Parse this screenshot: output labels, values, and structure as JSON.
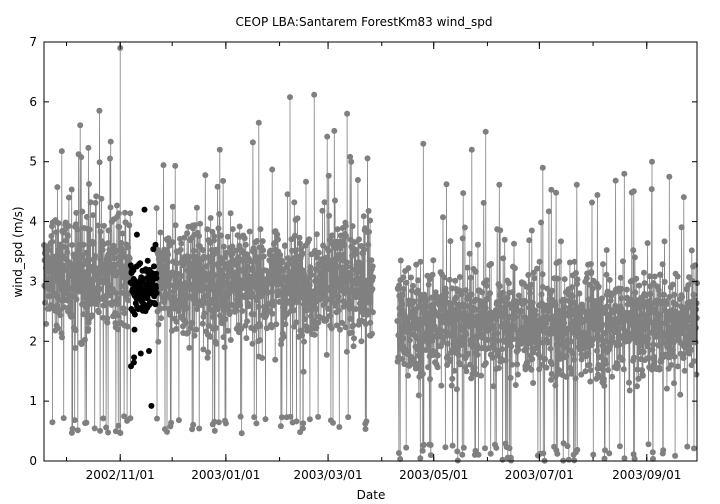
{
  "chart_data": {
    "type": "scatter",
    "title": "CEOP LBA:Santarem ForestKm83  wind_spd",
    "xlabel": "Date",
    "ylabel": "wind_spd (m/s)",
    "x_axis_type": "date",
    "xlim": [
      "2002-09-18",
      "2003-09-30"
    ],
    "ylim": [
      0,
      7
    ],
    "y_ticks": [
      0,
      1,
      2,
      3,
      4,
      5,
      6,
      7
    ],
    "x_ticks": [
      "2002-11-01",
      "2003-01-01",
      "2003-03-01",
      "2003-05-01",
      "2003-07-01",
      "2003-09-01"
    ],
    "x_tick_labels": [
      "2002/11/01",
      "2003/01/01",
      "2003/03/01",
      "2003/05/01",
      "2003/07/01",
      "2003/09/01"
    ],
    "grid": false,
    "legend": "none",
    "series": [
      {
        "color": "#808080",
        "mode": "lines+markers",
        "segments": [
          {
            "start": "2002-09-18",
            "end": "2002-11-07",
            "mean": 3.1,
            "spread": 1.3,
            "min_floor": 0.45
          },
          {
            "start": "2002-11-22",
            "end": "2003-03-27",
            "mean": 3.0,
            "spread": 1.3,
            "min_floor": 0.45
          },
          {
            "start": "2003-04-10",
            "end": "2003-09-30",
            "mean": 2.3,
            "spread": 1.2,
            "min_floor": 0.0
          }
        ],
        "spikes": [
          {
            "x": "2002-11-01",
            "y": 6.9
          },
          {
            "x": "2002-10-20",
            "y": 5.85
          },
          {
            "x": "2003-02-07",
            "y": 6.08
          },
          {
            "x": "2003-02-21",
            "y": 6.12
          },
          {
            "x": "2003-03-12",
            "y": 5.8
          },
          {
            "x": "2003-01-20",
            "y": 5.65
          },
          {
            "x": "2003-04-25",
            "y": 5.3
          },
          {
            "x": "2003-05-31",
            "y": 5.5
          },
          {
            "x": "2003-05-23",
            "y": 5.2
          },
          {
            "x": "2003-07-03",
            "y": 4.9
          },
          {
            "x": "2003-08-19",
            "y": 4.8
          },
          {
            "x": "2003-09-04",
            "y": 5.0
          },
          {
            "x": "2003-09-14",
            "y": 4.75
          }
        ]
      },
      {
        "color": "#000000",
        "mode": "markers",
        "segments": [
          {
            "start": "2002-11-07",
            "end": "2002-11-22",
            "mean": 2.95,
            "spread": 0.65,
            "min_floor": 1.55
          }
        ],
        "spikes": [
          {
            "x": "2002-11-19",
            "y": 0.92
          },
          {
            "x": "2002-11-15",
            "y": 4.2
          }
        ]
      }
    ]
  }
}
